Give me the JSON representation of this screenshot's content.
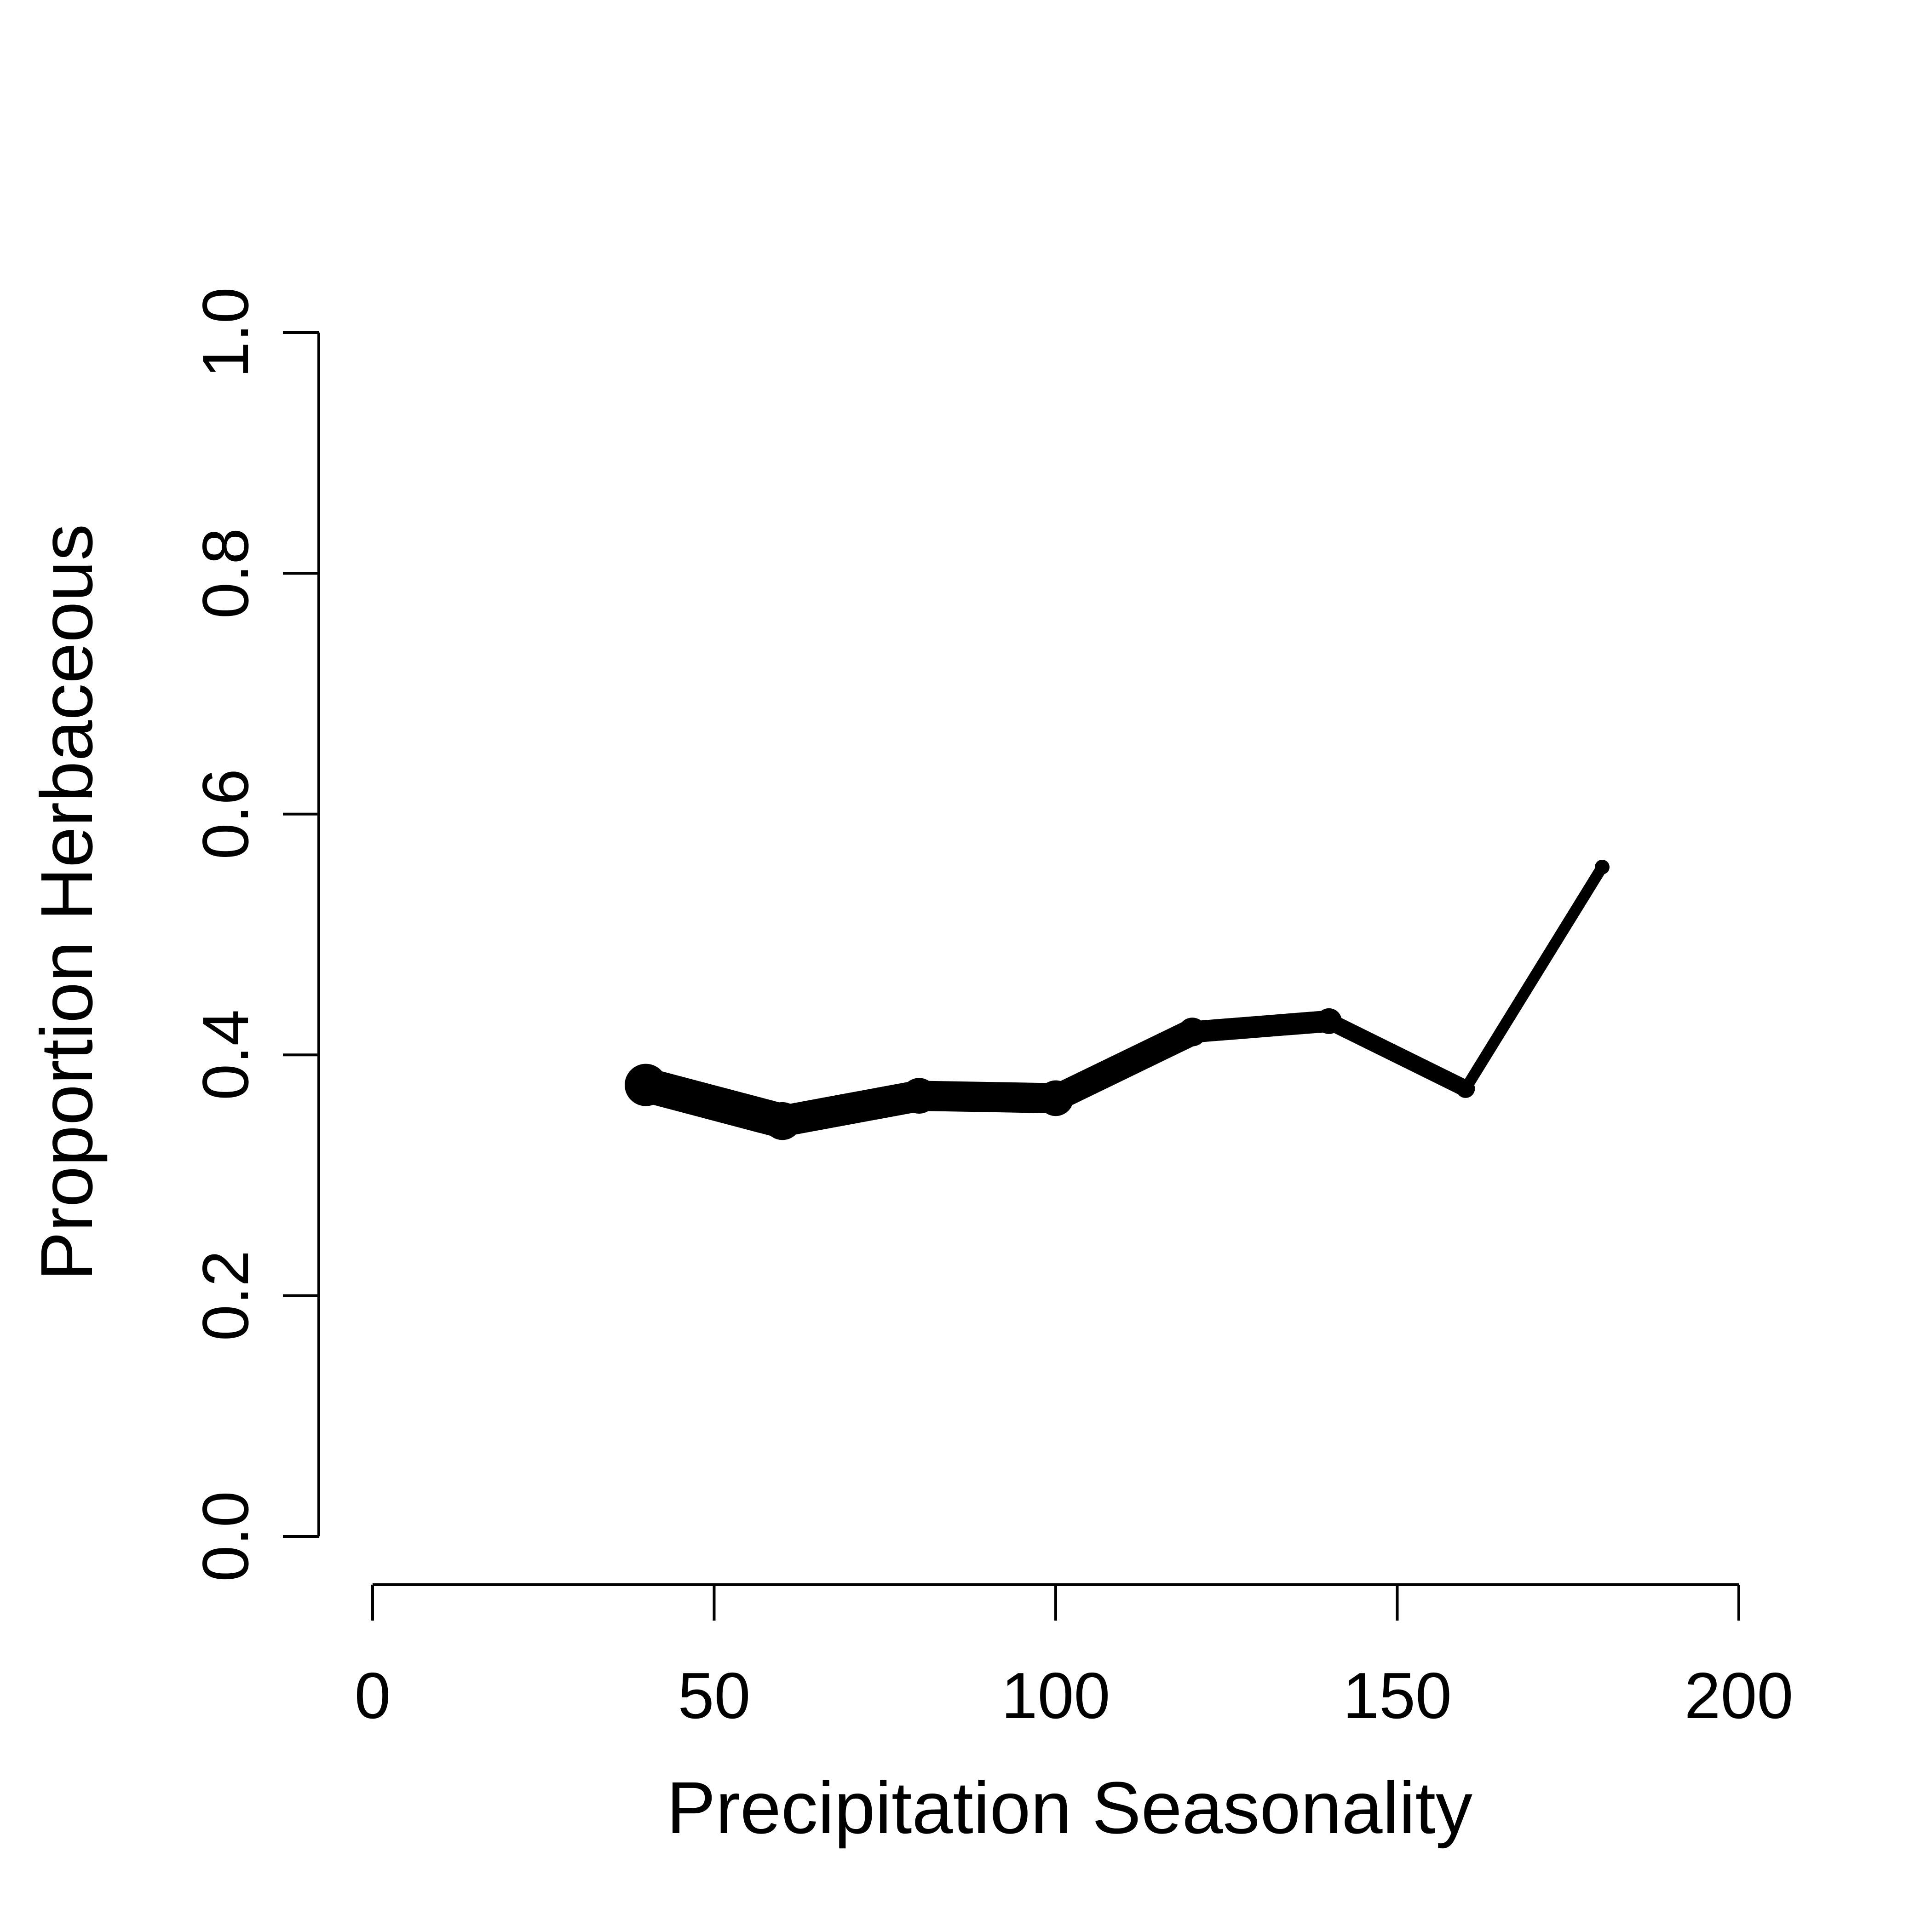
{
  "chart_data": {
    "type": "line",
    "title": "",
    "xlabel": "Precipitation Seasonality",
    "ylabel": "Proportion Herbaceous",
    "xlim": [
      0,
      200
    ],
    "ylim": [
      0,
      1
    ],
    "x_ticks": [
      "0",
      "50",
      "100",
      "150",
      "200"
    ],
    "y_ticks": [
      "0.0",
      "0.2",
      "0.4",
      "0.6",
      "0.8",
      "1.0"
    ],
    "grid": false,
    "legend": "none",
    "line_color": "#000000",
    "line_width_note": "line thickness varies along x (thicker at lower x)",
    "series": [
      {
        "x": [
          40,
          60,
          80,
          100,
          120,
          140,
          160,
          180
        ],
        "values": [
          0.375,
          0.345,
          0.366,
          0.364,
          0.419,
          0.428,
          0.372,
          0.556
        ],
        "weights": [
          1.0,
          0.88,
          0.82,
          0.82,
          0.63,
          0.55,
          0.36,
          0.24
        ]
      }
    ]
  }
}
